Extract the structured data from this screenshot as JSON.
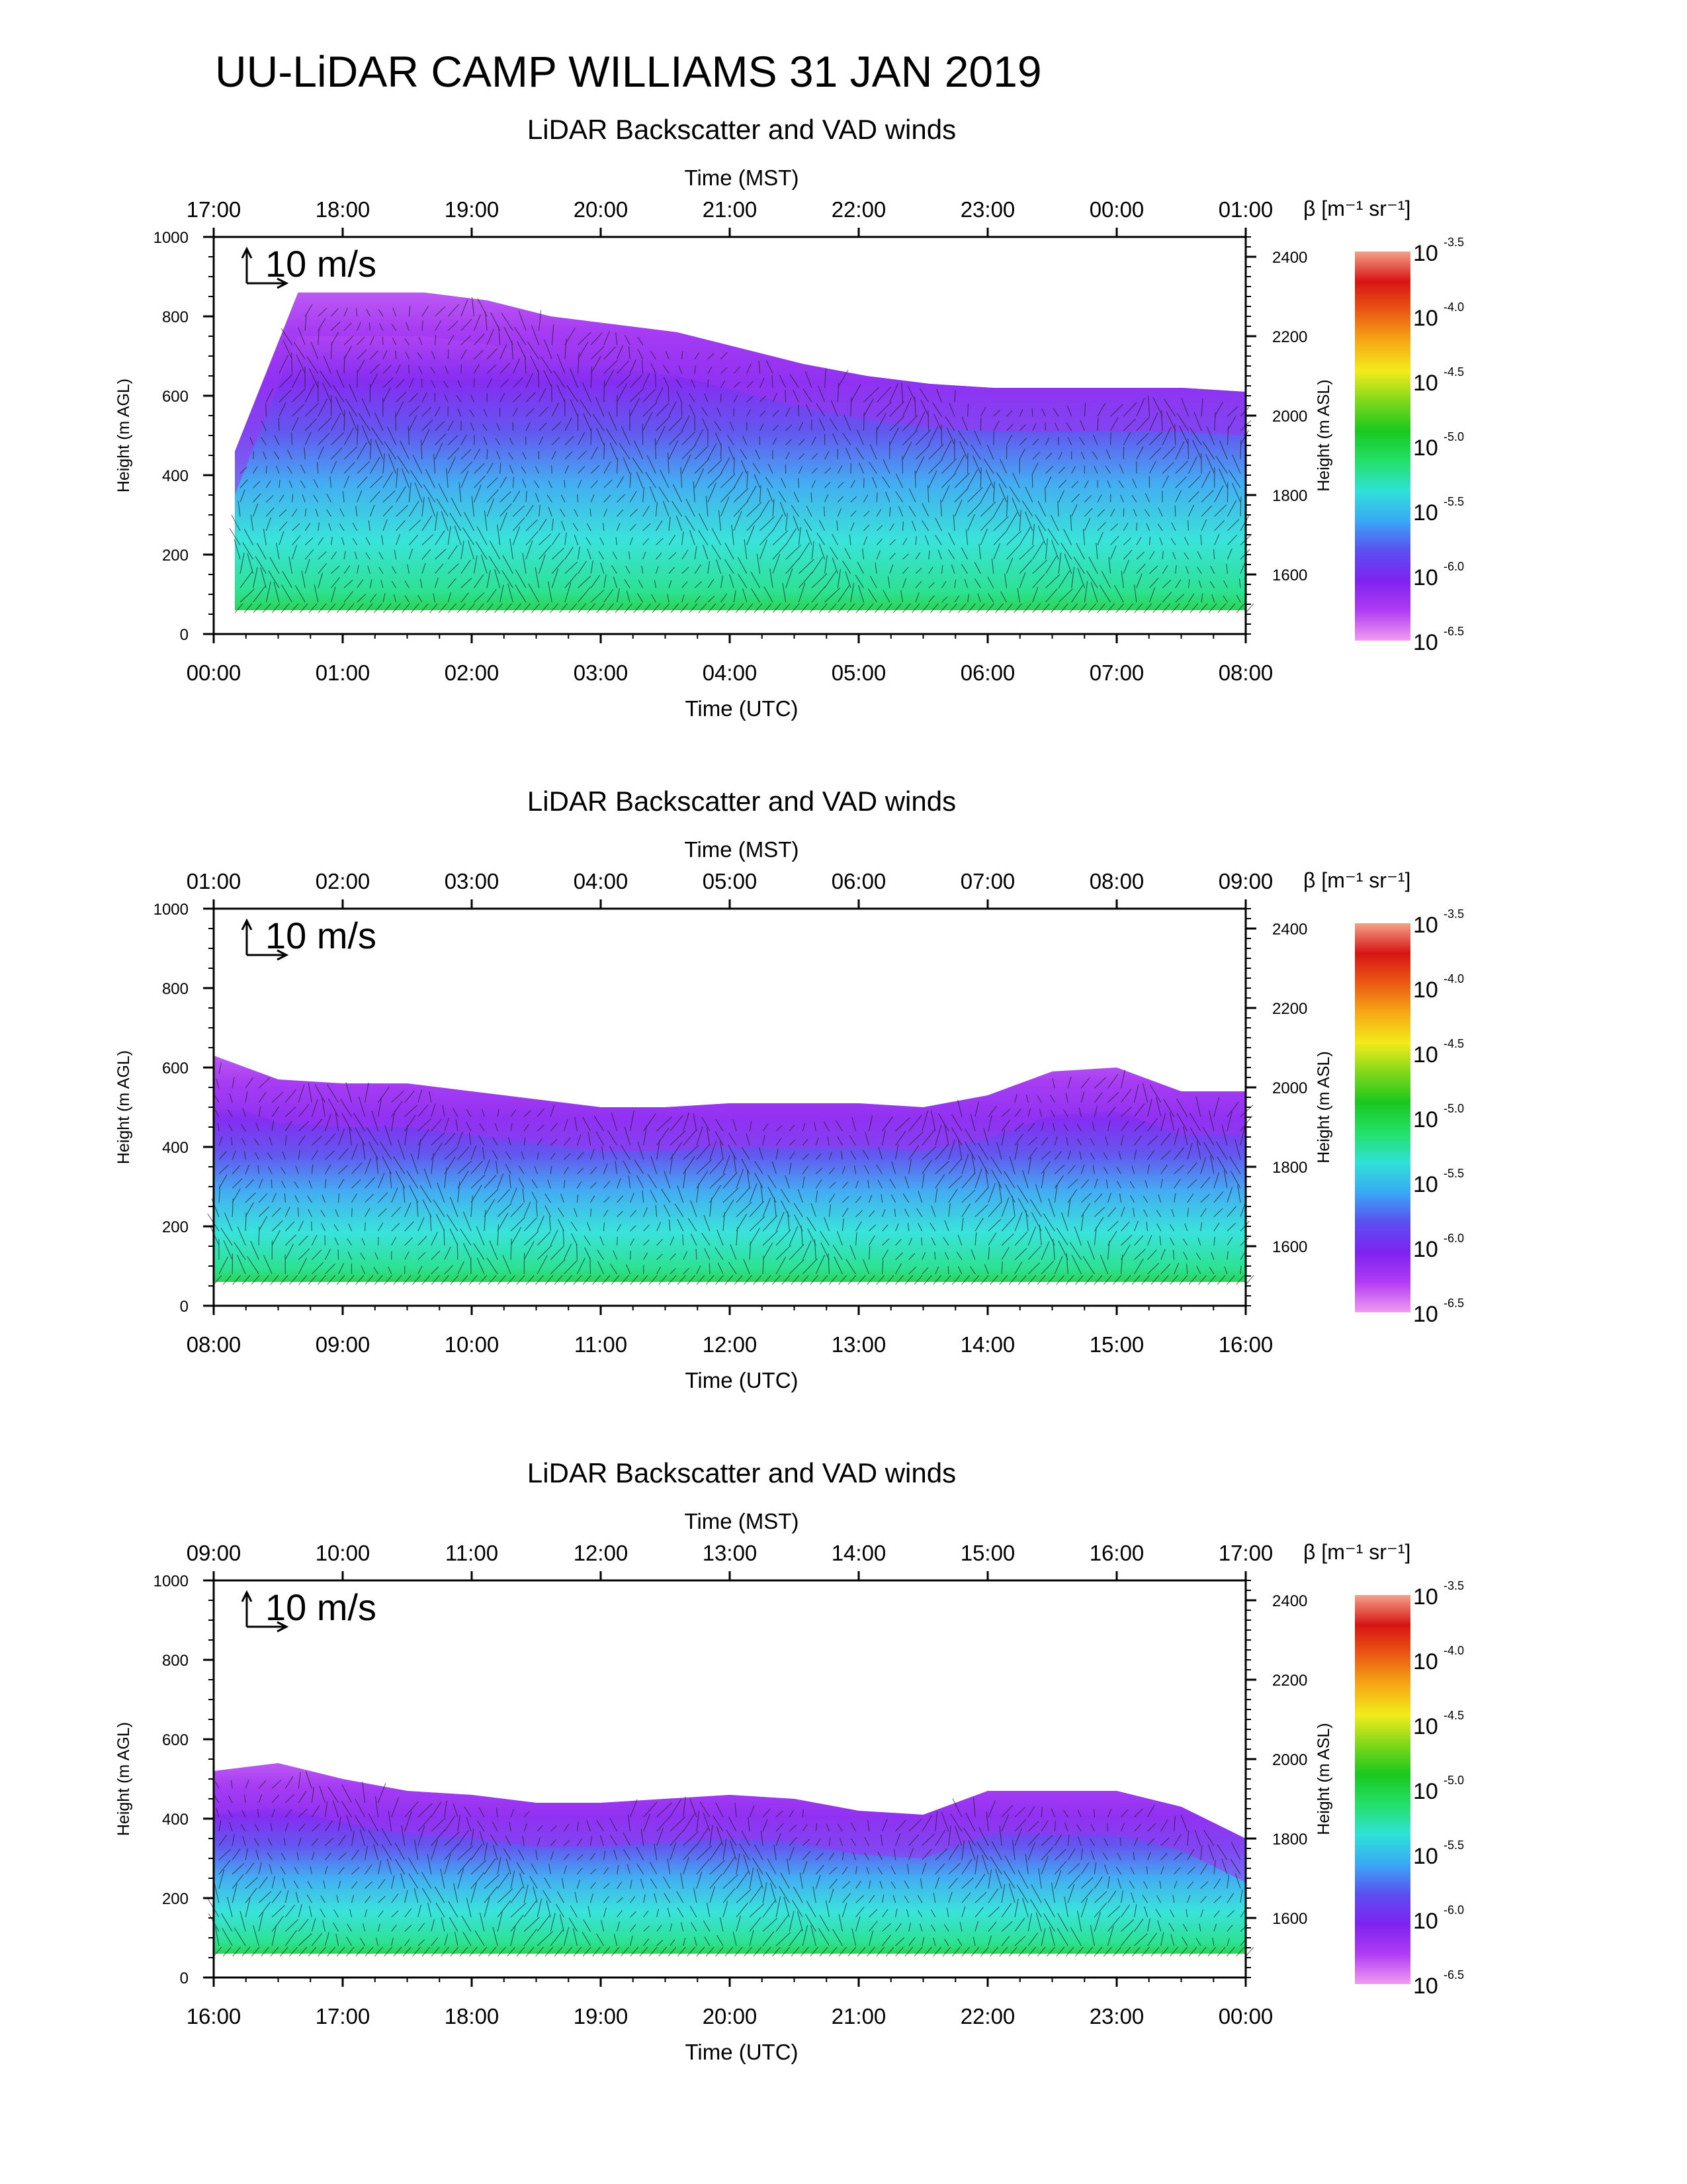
{
  "page": {
    "title": "UU-LiDAR CAMP WILLIAMS 31 JAN 2019"
  },
  "colors": {
    "colorbar_stops": [
      "#f19cf0",
      "#b13cf3",
      "#7e22f0",
      "#5b4ff0",
      "#39a9f4",
      "#2fe2d8",
      "#24e06a",
      "#19c81e",
      "#7fd81a",
      "#f2ec1a",
      "#f6a915",
      "#ea5a14",
      "#d81414",
      "#f3a28a"
    ],
    "frame": "#000000"
  },
  "chart_data": [
    {
      "type": "heatmap",
      "title": "LiDAR Backscatter and VAD winds",
      "top_axis_label": "Time (MST)",
      "top_ticks": [
        "17:00",
        "18:00",
        "19:00",
        "20:00",
        "21:00",
        "22:00",
        "23:00",
        "00:00",
        "01:00"
      ],
      "xlabel": "Time (UTC)",
      "x_ticks": [
        "00:00",
        "01:00",
        "02:00",
        "03:00",
        "04:00",
        "05:00",
        "06:00",
        "07:00",
        "08:00"
      ],
      "ylabel": "Height (m AGL)",
      "ylim": [
        0,
        1000
      ],
      "y_ticks": [
        "0",
        "200",
        "400",
        "600",
        "800",
        "1000"
      ],
      "y2label": "Height (m ASL)",
      "y2_ticks": [
        "1600",
        "1800",
        "2000",
        "2200",
        "2400"
      ],
      "y2_values": [
        1600,
        1800,
        2000,
        2200,
        2400
      ],
      "y2_base": 1450,
      "wind_scale_label": "10 m/s",
      "colorbar": {
        "label": "β [m⁻¹ sr⁻¹]",
        "base": "10",
        "exponents": [
          "-6.5",
          "-6.0",
          "-5.5",
          "-5.0",
          "-4.5",
          "-4.0",
          "-3.5"
        ]
      },
      "layer_top_m": [
        460,
        860,
        860,
        860,
        840,
        800,
        780,
        760,
        720,
        680,
        650,
        630,
        620,
        620,
        620,
        620,
        610
      ]
    },
    {
      "type": "heatmap",
      "title": "LiDAR Backscatter and VAD winds",
      "top_axis_label": "Time (MST)",
      "top_ticks": [
        "01:00",
        "02:00",
        "03:00",
        "04:00",
        "05:00",
        "06:00",
        "07:00",
        "08:00",
        "09:00"
      ],
      "xlabel": "Time (UTC)",
      "x_ticks": [
        "08:00",
        "09:00",
        "10:00",
        "11:00",
        "12:00",
        "13:00",
        "14:00",
        "15:00",
        "16:00"
      ],
      "ylabel": "Height (m AGL)",
      "ylim": [
        0,
        1000
      ],
      "y_ticks": [
        "0",
        "200",
        "400",
        "600",
        "800",
        "1000"
      ],
      "y2label": "Height (m ASL)",
      "y2_ticks": [
        "1600",
        "1800",
        "2000",
        "2200",
        "2400"
      ],
      "y2_values": [
        1600,
        1800,
        2000,
        2200,
        2400
      ],
      "y2_base": 1450,
      "wind_scale_label": "10 m/s",
      "colorbar": {
        "label": "β [m⁻¹ sr⁻¹]",
        "base": "10",
        "exponents": [
          "-6.5",
          "-6.0",
          "-5.5",
          "-5.0",
          "-4.5",
          "-4.0",
          "-3.5"
        ]
      },
      "layer_top_m": [
        630,
        570,
        560,
        560,
        540,
        520,
        500,
        500,
        510,
        510,
        510,
        500,
        530,
        590,
        600,
        540,
        540
      ]
    },
    {
      "type": "heatmap",
      "title": "LiDAR Backscatter and VAD winds",
      "top_axis_label": "Time (MST)",
      "top_ticks": [
        "09:00",
        "10:00",
        "11:00",
        "12:00",
        "13:00",
        "14:00",
        "15:00",
        "16:00",
        "17:00"
      ],
      "xlabel": "Time (UTC)",
      "x_ticks": [
        "16:00",
        "17:00",
        "18:00",
        "19:00",
        "20:00",
        "21:00",
        "22:00",
        "23:00",
        "00:00"
      ],
      "ylabel": "Height (m AGL)",
      "ylim": [
        0,
        1000
      ],
      "y_ticks": [
        "0",
        "200",
        "400",
        "600",
        "800",
        "1000"
      ],
      "y2label": "Height (m ASL)",
      "y2_ticks": [
        "1600",
        "1800",
        "2000",
        "2200",
        "2400"
      ],
      "y2_values": [
        1600,
        1800,
        2000,
        2200,
        2400
      ],
      "y2_base": 1450,
      "wind_scale_label": "10 m/s",
      "colorbar": {
        "label": "β [m⁻¹ sr⁻¹]",
        "base": "10",
        "exponents": [
          "-6.5",
          "-6.0",
          "-5.5",
          "-5.0",
          "-4.5",
          "-4.0",
          "-3.5"
        ]
      },
      "layer_top_m": [
        520,
        540,
        500,
        470,
        460,
        440,
        440,
        450,
        460,
        450,
        420,
        410,
        470,
        470,
        470,
        430,
        350
      ]
    }
  ]
}
